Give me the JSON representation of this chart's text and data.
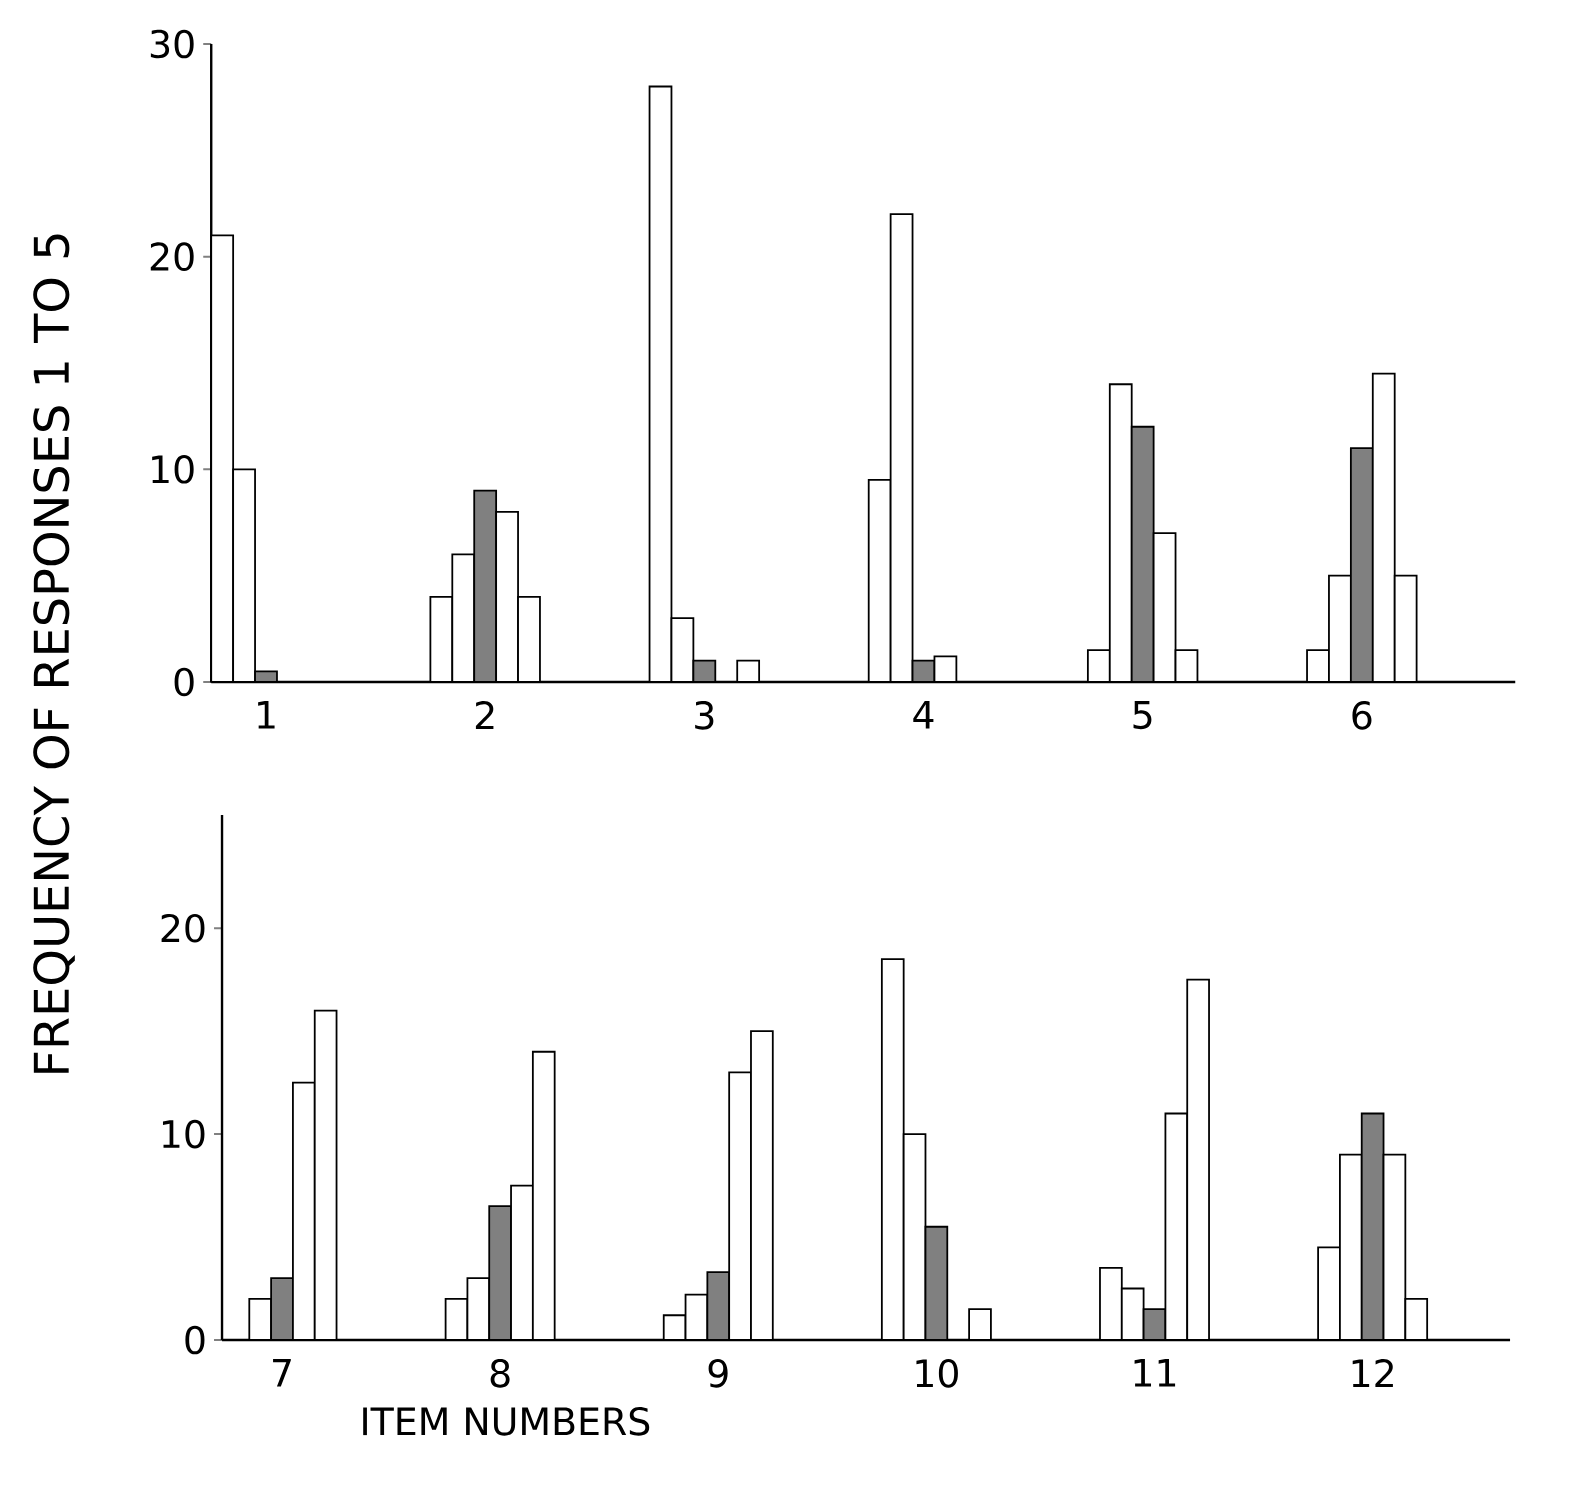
{
  "chart_data": [
    {
      "type": "bar",
      "ylabel": "FREQUENCY OF RESPONSES 1 TO 5",
      "categories": [
        "1",
        "2",
        "3",
        "4",
        "5",
        "6"
      ],
      "ylim": [
        0,
        30
      ],
      "yticks": [
        0,
        10,
        20,
        30
      ],
      "series": [
        {
          "color": "#ffffff",
          "values": [
            21,
            4,
            28,
            9.5,
            1.5,
            1.5
          ]
        },
        {
          "color": "#ffffff",
          "values": [
            10,
            6,
            3,
            22,
            14,
            5
          ]
        },
        {
          "color": "#808080",
          "values": [
            0.5,
            9,
            1,
            1,
            12,
            11
          ]
        },
        {
          "color": "#ffffff",
          "values": [
            0,
            8,
            0,
            1.2,
            7,
            14.5
          ]
        },
        {
          "color": "#ffffff",
          "values": [
            0,
            4,
            1,
            0,
            1.5,
            5
          ]
        }
      ]
    },
    {
      "type": "bar",
      "xlabel": "ITEM NUMBERS",
      "categories": [
        "7",
        "8",
        "9",
        "10",
        "11",
        "12"
      ],
      "ylim": [
        0,
        25.5
      ],
      "yticks": [
        0,
        10,
        20
      ],
      "series": [
        {
          "color": "#ffffff",
          "values": [
            0,
            2,
            1.2,
            18.5,
            3.5,
            4.5
          ]
        },
        {
          "color": "#ffffff",
          "values": [
            2,
            3,
            2.2,
            10,
            2.5,
            9
          ]
        },
        {
          "color": "#808080",
          "values": [
            3,
            6.5,
            3.3,
            5.5,
            1.5,
            11
          ]
        },
        {
          "color": "#ffffff",
          "values": [
            12.5,
            7.5,
            13,
            0,
            11,
            9
          ]
        },
        {
          "color": "#ffffff",
          "values": [
            16,
            14,
            15,
            1.5,
            17.5,
            2
          ]
        }
      ]
    }
  ]
}
